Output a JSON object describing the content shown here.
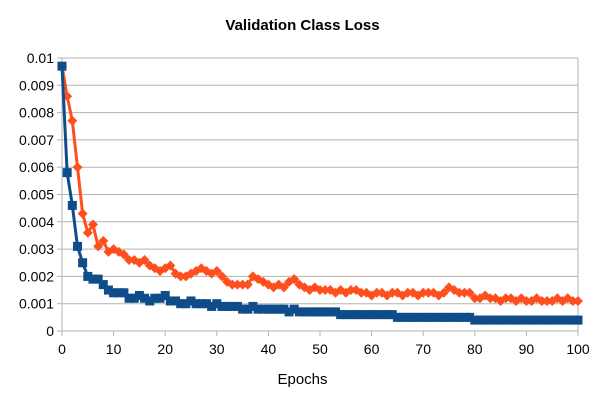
{
  "chart_data": {
    "type": "line",
    "title": "Validation Class Loss",
    "xlabel": "Epochs",
    "ylabel": "",
    "xlim": [
      0,
      100
    ],
    "ylim": [
      0,
      0.01
    ],
    "x_ticks": [
      "0",
      "10",
      "20",
      "30",
      "40",
      "50",
      "60",
      "70",
      "80",
      "90",
      "100"
    ],
    "y_ticks": [
      "0",
      "0.001",
      "0.002",
      "0.003",
      "0.004",
      "0.005",
      "0.006",
      "0.007",
      "0.008",
      "0.009",
      "0.01"
    ],
    "grid": "horizontal",
    "legend": "none",
    "series": [
      {
        "color": "#ff4f1f",
        "marker": "diamond",
        "points": [
          [
            0,
            0.0097
          ],
          [
            1,
            0.0086
          ],
          [
            2,
            0.0077
          ],
          [
            3,
            0.006
          ],
          [
            4,
            0.0043
          ],
          [
            5,
            0.0036
          ],
          [
            6,
            0.0039
          ],
          [
            7,
            0.0031
          ],
          [
            8,
            0.0033
          ],
          [
            9,
            0.0029
          ],
          [
            10,
            0.003
          ],
          [
            11,
            0.0029
          ],
          [
            12,
            0.0028
          ],
          [
            13,
            0.0026
          ],
          [
            14,
            0.0026
          ],
          [
            15,
            0.0025
          ],
          [
            16,
            0.0026
          ],
          [
            17,
            0.0024
          ],
          [
            18,
            0.0023
          ],
          [
            19,
            0.0022
          ],
          [
            20,
            0.0023
          ],
          [
            21,
            0.0024
          ],
          [
            22,
            0.0021
          ],
          [
            23,
            0.002
          ],
          [
            24,
            0.002
          ],
          [
            25,
            0.0021
          ],
          [
            26,
            0.0022
          ],
          [
            27,
            0.0023
          ],
          [
            28,
            0.0022
          ],
          [
            29,
            0.0021
          ],
          [
            30,
            0.0022
          ],
          [
            31,
            0.002
          ],
          [
            32,
            0.0018
          ],
          [
            33,
            0.0017
          ],
          [
            34,
            0.0017
          ],
          [
            35,
            0.0017
          ],
          [
            36,
            0.0017
          ],
          [
            37,
            0.002
          ],
          [
            38,
            0.0019
          ],
          [
            39,
            0.0018
          ],
          [
            40,
            0.0017
          ],
          [
            41,
            0.0016
          ],
          [
            42,
            0.0017
          ],
          [
            43,
            0.0016
          ],
          [
            44,
            0.0018
          ],
          [
            45,
            0.0019
          ],
          [
            46,
            0.0017
          ],
          [
            47,
            0.0016
          ],
          [
            48,
            0.0015
          ],
          [
            49,
            0.0016
          ],
          [
            50,
            0.0015
          ],
          [
            51,
            0.0015
          ],
          [
            52,
            0.0015
          ],
          [
            53,
            0.0014
          ],
          [
            54,
            0.0015
          ],
          [
            55,
            0.0014
          ],
          [
            56,
            0.0015
          ],
          [
            57,
            0.0015
          ],
          [
            58,
            0.0014
          ],
          [
            59,
            0.0014
          ],
          [
            60,
            0.0013
          ],
          [
            61,
            0.0014
          ],
          [
            62,
            0.0014
          ],
          [
            63,
            0.0013
          ],
          [
            64,
            0.0014
          ],
          [
            65,
            0.0014
          ],
          [
            66,
            0.0013
          ],
          [
            67,
            0.0014
          ],
          [
            68,
            0.0014
          ],
          [
            69,
            0.0013
          ],
          [
            70,
            0.0014
          ],
          [
            71,
            0.0014
          ],
          [
            72,
            0.0014
          ],
          [
            73,
            0.0013
          ],
          [
            74,
            0.0014
          ],
          [
            75,
            0.0016
          ],
          [
            76,
            0.0015
          ],
          [
            77,
            0.0014
          ],
          [
            78,
            0.0014
          ],
          [
            79,
            0.0014
          ],
          [
            80,
            0.0012
          ],
          [
            81,
            0.0012
          ],
          [
            82,
            0.0013
          ],
          [
            83,
            0.0012
          ],
          [
            84,
            0.0012
          ],
          [
            85,
            0.0011
          ],
          [
            86,
            0.0012
          ],
          [
            87,
            0.0012
          ],
          [
            88,
            0.0011
          ],
          [
            89,
            0.0012
          ],
          [
            90,
            0.0011
          ],
          [
            91,
            0.0011
          ],
          [
            92,
            0.0012
          ],
          [
            93,
            0.0011
          ],
          [
            94,
            0.0011
          ],
          [
            95,
            0.0011
          ],
          [
            96,
            0.0012
          ],
          [
            97,
            0.0011
          ],
          [
            98,
            0.0012
          ],
          [
            99,
            0.0011
          ],
          [
            100,
            0.0011
          ]
        ]
      },
      {
        "color": "#0e4c8a",
        "marker": "square",
        "points": [
          [
            0,
            0.0097
          ],
          [
            1,
            0.0058
          ],
          [
            2,
            0.0046
          ],
          [
            3,
            0.0031
          ],
          [
            4,
            0.0025
          ],
          [
            5,
            0.002
          ],
          [
            6,
            0.0019
          ],
          [
            7,
            0.0019
          ],
          [
            8,
            0.0017
          ],
          [
            9,
            0.0015
          ],
          [
            10,
            0.0014
          ],
          [
            11,
            0.0014
          ],
          [
            12,
            0.0014
          ],
          [
            13,
            0.0012
          ],
          [
            14,
            0.0012
          ],
          [
            15,
            0.0013
          ],
          [
            16,
            0.0012
          ],
          [
            17,
            0.0011
          ],
          [
            18,
            0.0012
          ],
          [
            19,
            0.0012
          ],
          [
            20,
            0.0013
          ],
          [
            21,
            0.0011
          ],
          [
            22,
            0.0011
          ],
          [
            23,
            0.001
          ],
          [
            24,
            0.001
          ],
          [
            25,
            0.0011
          ],
          [
            26,
            0.001
          ],
          [
            27,
            0.001
          ],
          [
            28,
            0.001
          ],
          [
            29,
            0.0009
          ],
          [
            30,
            0.001
          ],
          [
            31,
            0.0009
          ],
          [
            32,
            0.0009
          ],
          [
            33,
            0.0009
          ],
          [
            34,
            0.0009
          ],
          [
            35,
            0.0008
          ],
          [
            36,
            0.0008
          ],
          [
            37,
            0.0009
          ],
          [
            38,
            0.0008
          ],
          [
            39,
            0.0008
          ],
          [
            40,
            0.0008
          ],
          [
            41,
            0.0008
          ],
          [
            42,
            0.0008
          ],
          [
            43,
            0.0008
          ],
          [
            44,
            0.0007
          ],
          [
            45,
            0.0008
          ],
          [
            46,
            0.0007
          ],
          [
            47,
            0.0007
          ],
          [
            48,
            0.0007
          ],
          [
            49,
            0.0007
          ],
          [
            50,
            0.0007
          ],
          [
            51,
            0.0007
          ],
          [
            52,
            0.0007
          ],
          [
            53,
            0.0007
          ],
          [
            54,
            0.0006
          ],
          [
            55,
            0.0006
          ],
          [
            56,
            0.0006
          ],
          [
            57,
            0.0006
          ],
          [
            58,
            0.0006
          ],
          [
            59,
            0.0006
          ],
          [
            60,
            0.0006
          ],
          [
            61,
            0.0006
          ],
          [
            62,
            0.0006
          ],
          [
            63,
            0.0006
          ],
          [
            64,
            0.0006
          ],
          [
            65,
            0.0005
          ],
          [
            66,
            0.0005
          ],
          [
            67,
            0.0005
          ],
          [
            68,
            0.0005
          ],
          [
            69,
            0.0005
          ],
          [
            70,
            0.0005
          ],
          [
            71,
            0.0005
          ],
          [
            72,
            0.0005
          ],
          [
            73,
            0.0005
          ],
          [
            74,
            0.0005
          ],
          [
            75,
            0.0005
          ],
          [
            76,
            0.0005
          ],
          [
            77,
            0.0005
          ],
          [
            78,
            0.0005
          ],
          [
            79,
            0.0005
          ],
          [
            80,
            0.0004
          ],
          [
            81,
            0.0004
          ],
          [
            82,
            0.0004
          ],
          [
            83,
            0.0004
          ],
          [
            84,
            0.0004
          ],
          [
            85,
            0.0004
          ],
          [
            86,
            0.0004
          ],
          [
            87,
            0.0004
          ],
          [
            88,
            0.0004
          ],
          [
            89,
            0.0004
          ],
          [
            90,
            0.0004
          ],
          [
            91,
            0.0004
          ],
          [
            92,
            0.0004
          ],
          [
            93,
            0.0004
          ],
          [
            94,
            0.0004
          ],
          [
            95,
            0.0004
          ],
          [
            96,
            0.0004
          ],
          [
            97,
            0.0004
          ],
          [
            98,
            0.0004
          ],
          [
            99,
            0.0004
          ],
          [
            100,
            0.0004
          ]
        ]
      }
    ]
  }
}
